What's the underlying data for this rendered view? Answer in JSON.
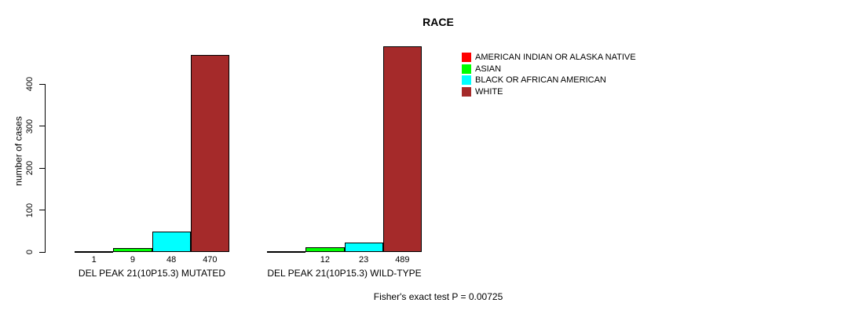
{
  "chart_data": {
    "type": "bar",
    "title": "RACE",
    "ylabel": "number of cases",
    "ylim": [
      0,
      400
    ],
    "yticks": [
      0,
      100,
      200,
      300,
      400
    ],
    "grid": false,
    "legend_position": "top-right",
    "bar_border_color": "#000000",
    "categories": [
      "AMERICAN INDIAN OR ALASKA NATIVE",
      "ASIAN",
      "BLACK OR AFRICAN AMERICAN",
      "WHITE"
    ],
    "legend": [
      {
        "label": "AMERICAN INDIAN OR ALASKA NATIVE",
        "color": "#FF0000"
      },
      {
        "label": "ASIAN",
        "color": "#00FF00"
      },
      {
        "label": "BLACK OR AFRICAN AMERICAN",
        "color": "#00FFFF"
      },
      {
        "label": "WHITE",
        "color": "#A52A2A"
      }
    ],
    "groups": [
      {
        "label": "DEL PEAK 21(10P15.3) MUTATED",
        "values": [
          1,
          9,
          48,
          470
        ],
        "bar_labels": [
          "1",
          "9",
          "48",
          "470"
        ]
      },
      {
        "label": "DEL PEAK 21(10P15.3) WILD-TYPE",
        "values": [
          0,
          12,
          23,
          489
        ],
        "bar_labels": [
          "",
          "12",
          "23",
          "489"
        ]
      }
    ],
    "annotation": "Fisher's exact test P = 0.00725"
  }
}
